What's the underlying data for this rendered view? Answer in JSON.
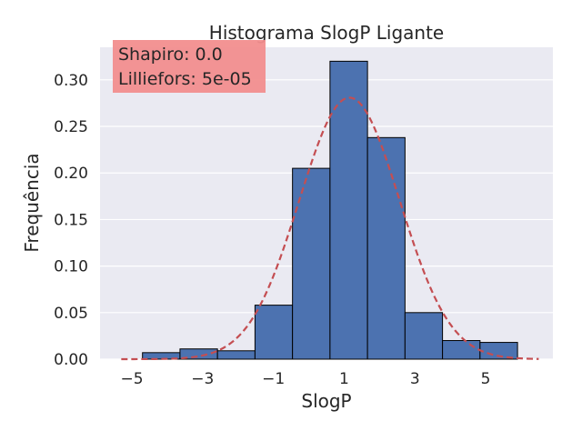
{
  "chart_data": {
    "type": "bar",
    "title": "Histograma SlogP Ligante",
    "xlabel": "SlogP",
    "ylabel": "Frequência",
    "xlim": [
      -5.9,
      6.9
    ],
    "ylim": [
      0,
      0.335
    ],
    "xticks": [
      -5,
      -3,
      -1,
      1,
      3,
      5
    ],
    "xtick_labels": [
      "−5",
      "−3",
      "−1",
      "1",
      "3",
      "5"
    ],
    "yticks": [
      0,
      0.05,
      0.1,
      0.15,
      0.2,
      0.25,
      0.3
    ],
    "ytick_labels": [
      "0.00",
      "0.05",
      "0.10",
      "0.15",
      "0.20",
      "0.25",
      "0.30"
    ],
    "bins": [
      {
        "x0": -4.7,
        "x1": -3.64,
        "value": 0.007
      },
      {
        "x0": -3.64,
        "x1": -2.58,
        "value": 0.011
      },
      {
        "x0": -2.58,
        "x1": -1.52,
        "value": 0.009
      },
      {
        "x0": -1.52,
        "x1": -0.46,
        "value": 0.058
      },
      {
        "x0": -0.46,
        "x1": 0.6,
        "value": 0.205
      },
      {
        "x0": 0.6,
        "x1": 1.66,
        "value": 0.32
      },
      {
        "x0": 1.66,
        "x1": 2.72,
        "value": 0.238
      },
      {
        "x0": 2.72,
        "x1": 3.78,
        "value": 0.05
      },
      {
        "x0": 3.78,
        "x1": 4.84,
        "value": 0.02
      },
      {
        "x0": 4.84,
        "x1": 5.9,
        "value": 0.018
      }
    ],
    "normal_fit": {
      "mean": 1.15,
      "std": 1.42,
      "x_range": [
        -5.3,
        6.5
      ],
      "style": "dashed"
    },
    "annotation": {
      "line1": "Shapiro: 0.0",
      "line2": "Lilliefors: 5e-05"
    },
    "grid": true,
    "legend": "none",
    "colors": {
      "bar_fill": "#4c72b0",
      "bar_edge": "#000000",
      "fit_line": "#c44e52",
      "plot_background": "#eaeaf2",
      "grid": "#ffffff",
      "annotation_box": "#f28e8e"
    }
  }
}
